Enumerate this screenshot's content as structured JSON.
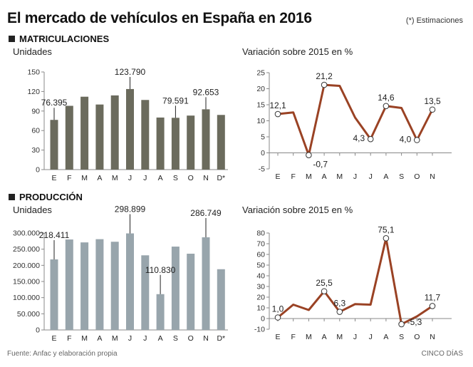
{
  "title": "El mercado de vehículos en España en 2016",
  "note": "(*) Estimaciones",
  "sections": {
    "top": "MATRICULACIONES",
    "bottom": "PRODUCCIÓN"
  },
  "source": "Fuente: Anfac y elaboración propia",
  "brand": "CINCO DÍAS",
  "colors": {
    "bar_top": "#6b6b5d",
    "bar_bottom": "#98a5ac",
    "line": "#9a4224"
  },
  "chart_data": [
    {
      "type": "bar",
      "title": "",
      "ylabel": "Unidades",
      "categories": [
        "E",
        "F",
        "M",
        "A",
        "M",
        "J",
        "J",
        "A",
        "S",
        "O",
        "N",
        "D*"
      ],
      "values": [
        76395,
        98000,
        112000,
        100000,
        114000,
        123790,
        107000,
        80000,
        79591,
        83000,
        92653,
        84000
      ],
      "ylim": [
        0,
        150000
      ],
      "yticks": [
        0,
        30000,
        60000,
        90000,
        120000,
        150000
      ],
      "ytick_labels": [
        "0",
        "30",
        "60",
        "90",
        "120",
        "150"
      ],
      "annotations": [
        {
          "index": 0,
          "label": "76.395"
        },
        {
          "index": 5,
          "label": "123.790"
        },
        {
          "index": 8,
          "label": "79.591"
        },
        {
          "index": 10,
          "label": "92.653"
        }
      ]
    },
    {
      "type": "line",
      "title": "Variación sobre 2015 en %",
      "categories": [
        "E",
        "F",
        "M",
        "A",
        "M",
        "J",
        "J",
        "A",
        "S",
        "O",
        "N"
      ],
      "values": [
        12.1,
        12.6,
        -0.7,
        21.2,
        20.9,
        11.0,
        4.3,
        14.6,
        14.0,
        4.0,
        13.5
      ],
      "ylim": [
        -5,
        25
      ],
      "yticks": [
        -5,
        0,
        5,
        10,
        15,
        20,
        25
      ],
      "ytick_labels": [
        "-5",
        "0",
        "5",
        "10",
        "15",
        "20",
        "25"
      ],
      "annotations": [
        {
          "index": 0,
          "label": "12,1",
          "pos": "above"
        },
        {
          "index": 2,
          "label": "-0,7",
          "pos": "below"
        },
        {
          "index": 3,
          "label": "21,2",
          "pos": "above"
        },
        {
          "index": 6,
          "label": "4,3",
          "pos": "left"
        },
        {
          "index": 7,
          "label": "14,6",
          "pos": "above"
        },
        {
          "index": 9,
          "label": "4,0",
          "pos": "left"
        },
        {
          "index": 10,
          "label": "13,5",
          "pos": "above"
        }
      ]
    },
    {
      "type": "bar",
      "title": "",
      "ylabel": "Unidades",
      "categories": [
        "E",
        "F",
        "M",
        "A",
        "M",
        "J",
        "J",
        "A",
        "S",
        "O",
        "N",
        "D*"
      ],
      "values": [
        218411,
        280000,
        271000,
        281000,
        273000,
        298899,
        231000,
        110830,
        258000,
        236000,
        286749,
        188000
      ],
      "ylim": [
        0,
        300000
      ],
      "yticks": [
        0,
        50000,
        100000,
        150000,
        200000,
        250000,
        300000
      ],
      "ytick_labels": [
        "0",
        "50.000",
        "100.000",
        "150.000",
        "200.000",
        "250.000",
        "300.000"
      ],
      "annotations": [
        {
          "index": 0,
          "label": "218.411"
        },
        {
          "index": 5,
          "label": "298.899"
        },
        {
          "index": 7,
          "label": "110.830"
        },
        {
          "index": 10,
          "label": "286.749"
        }
      ]
    },
    {
      "type": "line",
      "title": "Variación sobre 2015 en %",
      "categories": [
        "E",
        "F",
        "M",
        "A",
        "M",
        "J",
        "J",
        "A",
        "S",
        "O",
        "N"
      ],
      "values": [
        1.0,
        13.0,
        8.0,
        25.5,
        6.3,
        13.5,
        13.0,
        75.1,
        -5.3,
        2.0,
        11.7
      ],
      "ylim": [
        -10,
        80
      ],
      "yticks": [
        -10,
        0,
        10,
        20,
        30,
        40,
        50,
        60,
        70,
        80
      ],
      "ytick_labels": [
        "-10",
        "0",
        "10",
        "20",
        "30",
        "40",
        "50",
        "60",
        "70",
        "80"
      ],
      "annotations": [
        {
          "index": 0,
          "label": "1,0",
          "pos": "above"
        },
        {
          "index": 3,
          "label": "25,5",
          "pos": "above"
        },
        {
          "index": 4,
          "label": "6,3",
          "pos": "above"
        },
        {
          "index": 7,
          "label": "75,1",
          "pos": "above"
        },
        {
          "index": 8,
          "label": "-5,3",
          "pos": "right"
        },
        {
          "index": 10,
          "label": "11,7",
          "pos": "above"
        }
      ]
    }
  ]
}
